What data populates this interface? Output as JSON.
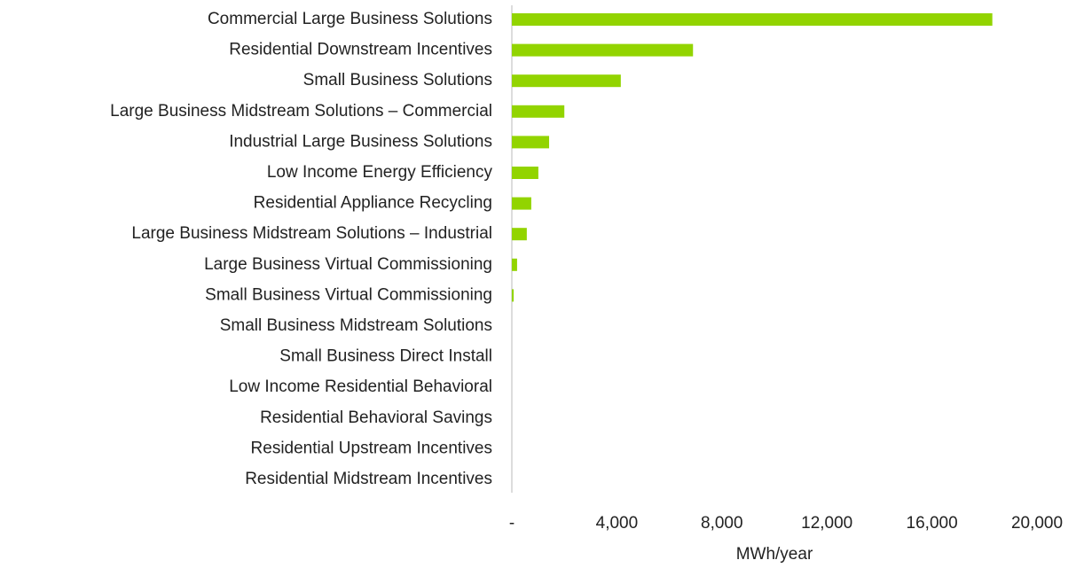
{
  "chart_data": {
    "type": "barh",
    "categories": [
      "Commercial Large Business Solutions",
      "Residential Downstream Incentives",
      "Small Business Solutions",
      "Large Business Midstream Solutions – Commercial",
      "Industrial Large Business Solutions",
      "Low Income Energy Efficiency",
      "Residential Appliance Recycling",
      "Large Business Midstream Solutions – Industrial",
      "Large Business Virtual Commissioning",
      "Small Business Virtual Commissioning",
      "Small Business Midstream Solutions",
      "Small Business Direct Install",
      "Low Income Residential Behavioral",
      "Residential Behavioral Savings",
      "Residential Upstream Incentives",
      "Residential Midstream Incentives"
    ],
    "values": [
      18300,
      6900,
      4150,
      2000,
      1420,
      1010,
      740,
      570,
      200,
      70,
      0,
      0,
      0,
      0,
      0,
      0
    ],
    "color": "#92d400",
    "xlabel": "MWh/year",
    "xlim": [
      0,
      20000
    ],
    "xticks": [
      {
        "value": 0,
        "label": "-"
      },
      {
        "value": 4000,
        "label": "4,000"
      },
      {
        "value": 8000,
        "label": "8,000"
      },
      {
        "value": 12000,
        "label": "12,000"
      },
      {
        "value": 16000,
        "label": "16,000"
      },
      {
        "value": 20000,
        "label": "20,000"
      }
    ],
    "grid": false
  }
}
